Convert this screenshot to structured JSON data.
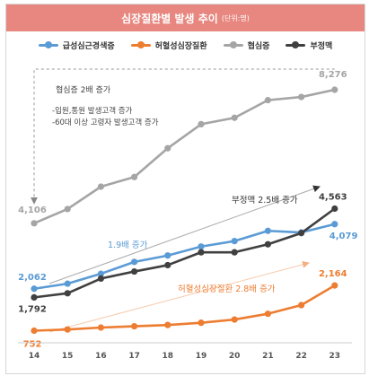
{
  "title": "심장질환별 발생 추이",
  "unit": "(단위:명)",
  "legend": [
    {
      "name": "급성심근경색증",
      "color": "#5b9bd5"
    },
    {
      "name": "허혈성심장질환",
      "color": "#ed7d31"
    },
    {
      "name": "협심증",
      "color": "#a5a5a5"
    },
    {
      "name": "부정맥",
      "color": "#404040"
    }
  ],
  "annotations": {
    "angina_title": "협심증 2배 증가",
    "angina_note1": "-입원,통원 발생고객 증가",
    "angina_note2": "-60대 이상 고령자 발생고객 증가",
    "arrhythmia": "부정맥 2.5배 증가",
    "ami": "1.9배 증가",
    "ihd": "허혈성심장질환 2.8배 증가"
  },
  "chart_data": {
    "type": "line",
    "x": [
      "14",
      "15",
      "16",
      "17",
      "18",
      "19",
      "20",
      "21",
      "22",
      "23"
    ],
    "series": [
      {
        "name": "협심증",
        "color": "#a5a5a5",
        "values": [
          4106,
          4550,
          5250,
          5550,
          6450,
          7200,
          7400,
          7950,
          8050,
          8276
        ],
        "first_label": "4,106",
        "last_label": "8,276"
      },
      {
        "name": "급성심근경색증",
        "color": "#5b9bd5",
        "values": [
          2062,
          2220,
          2530,
          2900,
          3100,
          3380,
          3550,
          3870,
          3820,
          4079
        ],
        "first_label": "2,062",
        "last_label": "4,079"
      },
      {
        "name": "부정맥",
        "color": "#404040",
        "values": [
          1792,
          1920,
          2380,
          2600,
          2800,
          3200,
          3200,
          3450,
          3800,
          4563
        ],
        "first_label": "1,792",
        "last_label": "4,563"
      },
      {
        "name": "허혈성심장질환",
        "color": "#ed7d31",
        "values": [
          752,
          790,
          850,
          890,
          930,
          1000,
          1100,
          1280,
          1550,
          2164
        ],
        "first_label": "752",
        "last_label": "2,164"
      }
    ]
  }
}
